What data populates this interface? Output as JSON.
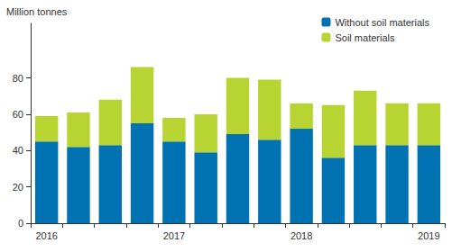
{
  "chart_data": {
    "type": "bar",
    "stacked": true,
    "y_label": "Million tonnes",
    "categories": [
      "2016",
      null,
      null,
      null,
      "2017",
      null,
      null,
      null,
      "2018",
      null,
      null,
      null,
      "2019"
    ],
    "series": [
      {
        "name": "Without soil materials",
        "color": "#0072b2",
        "values": [
          45,
          42,
          43,
          55,
          45,
          39,
          49,
          46,
          52,
          36,
          43,
          43,
          43
        ]
      },
      {
        "name": "Soil materials",
        "color": "#b7d433",
        "values": [
          14,
          19,
          25,
          31,
          13,
          21,
          31,
          33,
          14,
          29,
          30,
          23,
          23
        ]
      }
    ],
    "ylim": [
      0,
      110
    ],
    "yticks": [
      0,
      20,
      40,
      60,
      80
    ],
    "grid": false,
    "legend": "top-right"
  }
}
